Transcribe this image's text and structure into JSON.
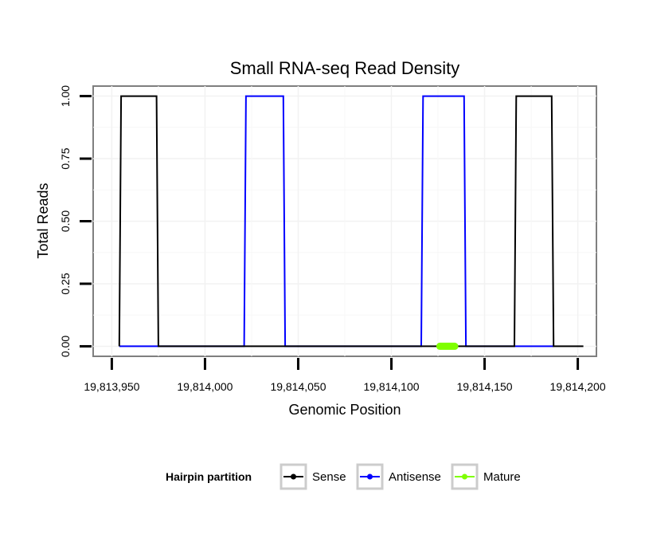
{
  "chart_data": {
    "type": "line",
    "title": "Small RNA-seq Read Density",
    "xlabel": "Genomic Position",
    "ylabel": "Total Reads",
    "xlim": [
      19813940,
      19814210
    ],
    "ylim": [
      -0.04,
      1.04
    ],
    "x_ticks": [
      19813950,
      19814000,
      19814050,
      19814100,
      19814150,
      19814200
    ],
    "x_tick_labels": [
      "19,813,950",
      "19,814,000",
      "19,814,050",
      "19,814,100",
      "19,814,150",
      "19,814,200"
    ],
    "y_ticks": [
      0,
      0.25,
      0.5,
      0.75,
      1
    ],
    "y_tick_labels": [
      "0.00",
      "0.25",
      "0.50",
      "0.75",
      "1.00"
    ],
    "grid": true,
    "legend": {
      "title": "Hairpin partition",
      "position": "bottom",
      "entries": [
        "Sense",
        "Antisense",
        "Mature"
      ]
    },
    "series": [
      {
        "name": "Sense",
        "color": "#000000",
        "points": [
          [
            19813954,
            0
          ],
          [
            19813955,
            1
          ],
          [
            19813974,
            1
          ],
          [
            19813975,
            0
          ],
          [
            19814021,
            0
          ],
          [
            19814043,
            0
          ],
          [
            19814116,
            0
          ],
          [
            19814140,
            0
          ],
          [
            19814166,
            0
          ],
          [
            19814167,
            1
          ],
          [
            19814186,
            1
          ],
          [
            19814187,
            0
          ],
          [
            19814203,
            0
          ]
        ]
      },
      {
        "name": "Antisense",
        "color": "#0000ff",
        "points": [
          [
            19813954,
            0
          ],
          [
            19813975,
            0
          ],
          [
            19814021,
            0
          ],
          [
            19814022,
            1
          ],
          [
            19814042,
            1
          ],
          [
            19814043,
            0
          ],
          [
            19814116,
            0
          ],
          [
            19814117,
            1
          ],
          [
            19814139,
            1
          ],
          [
            19814140,
            0
          ],
          [
            19814166,
            0
          ],
          [
            19814187,
            0
          ]
        ]
      },
      {
        "name": "Mature",
        "color": "#7fff00",
        "points": [
          [
            19814126,
            0
          ],
          [
            19814134,
            0
          ]
        ]
      }
    ]
  }
}
